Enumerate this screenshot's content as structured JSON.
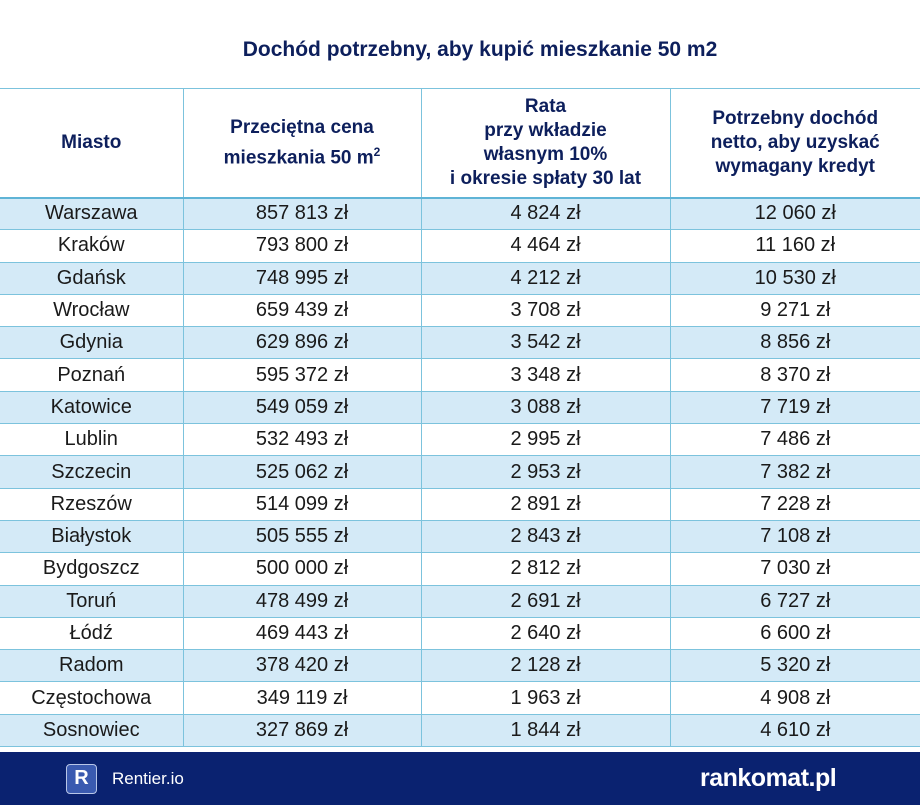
{
  "title": "Dochód potrzebny, aby kupić mieszkanie 50 m2",
  "columns": [
    "Miasto",
    "Przeciętna cena mieszkania 50 m",
    "Rata przy wkładzie własnym 10% i okresie spłaty 30 lat",
    "Potrzebny dochód netto, aby uzyskać wymagany kredyt"
  ],
  "column_sup": "2",
  "header_lines": {
    "c1": [
      "Przeciętna cena",
      "mieszkania 50 m"
    ],
    "c2": [
      "Rata",
      "przy wkładzie",
      "własnym 10%",
      "i okresie spłaty 30 lat"
    ],
    "c3": [
      "Potrzebny dochód",
      "netto, aby uzyskać",
      "wymagany kredyt"
    ]
  },
  "rows": [
    [
      "Warszawa",
      "857 813 zł",
      "4 824 zł",
      "12 060 zł"
    ],
    [
      "Kraków",
      "793 800 zł",
      "4 464 zł",
      "11 160 zł"
    ],
    [
      "Gdańsk",
      "748 995 zł",
      "4 212 zł",
      "10 530 zł"
    ],
    [
      "Wrocław",
      "659 439 zł",
      "3 708 zł",
      "9 271 zł"
    ],
    [
      "Gdynia",
      "629 896 zł",
      "3 542 zł",
      "8 856 zł"
    ],
    [
      "Poznań",
      "595 372 zł",
      "3 348 zł",
      "8 370 zł"
    ],
    [
      "Katowice",
      "549 059 zł",
      "3 088 zł",
      "7 719 zł"
    ],
    [
      "Lublin",
      "532 493 zł",
      "2 995 zł",
      "7 486 zł"
    ],
    [
      "Szczecin",
      "525 062 zł",
      "2 953 zł",
      "7 382 zł"
    ],
    [
      "Rzeszów",
      "514 099 zł",
      "2 891 zł",
      "7 228 zł"
    ],
    [
      "Białystok",
      "505 555 zł",
      "2 843 zł",
      "7 108 zł"
    ],
    [
      "Bydgoszcz",
      "500 000 zł",
      "2 812 zł",
      "7 030 zł"
    ],
    [
      "Toruń",
      "478 499 zł",
      "2 691 zł",
      "6 727 zł"
    ],
    [
      "Łódź",
      "469 443 zł",
      "2 640 zł",
      "6 600 zł"
    ],
    [
      "Radom",
      "378 420 zł",
      "2 128 zł",
      "5 320 zł"
    ],
    [
      "Częstochowa",
      "349 119 zł",
      "1 963 zł",
      "4 908 zł"
    ],
    [
      "Sosnowiec",
      "327 869 zł",
      "1 844 zł",
      "4 610 zł"
    ]
  ],
  "footer": {
    "rentier_letter": "R",
    "rentier": "Rentier.io",
    "rankomat": "rankomat.pl"
  },
  "colors": {
    "title": "#0d1f5c",
    "stripe": "#d4eaf7",
    "border": "#7cc3dd",
    "footer": "#0a2270"
  }
}
